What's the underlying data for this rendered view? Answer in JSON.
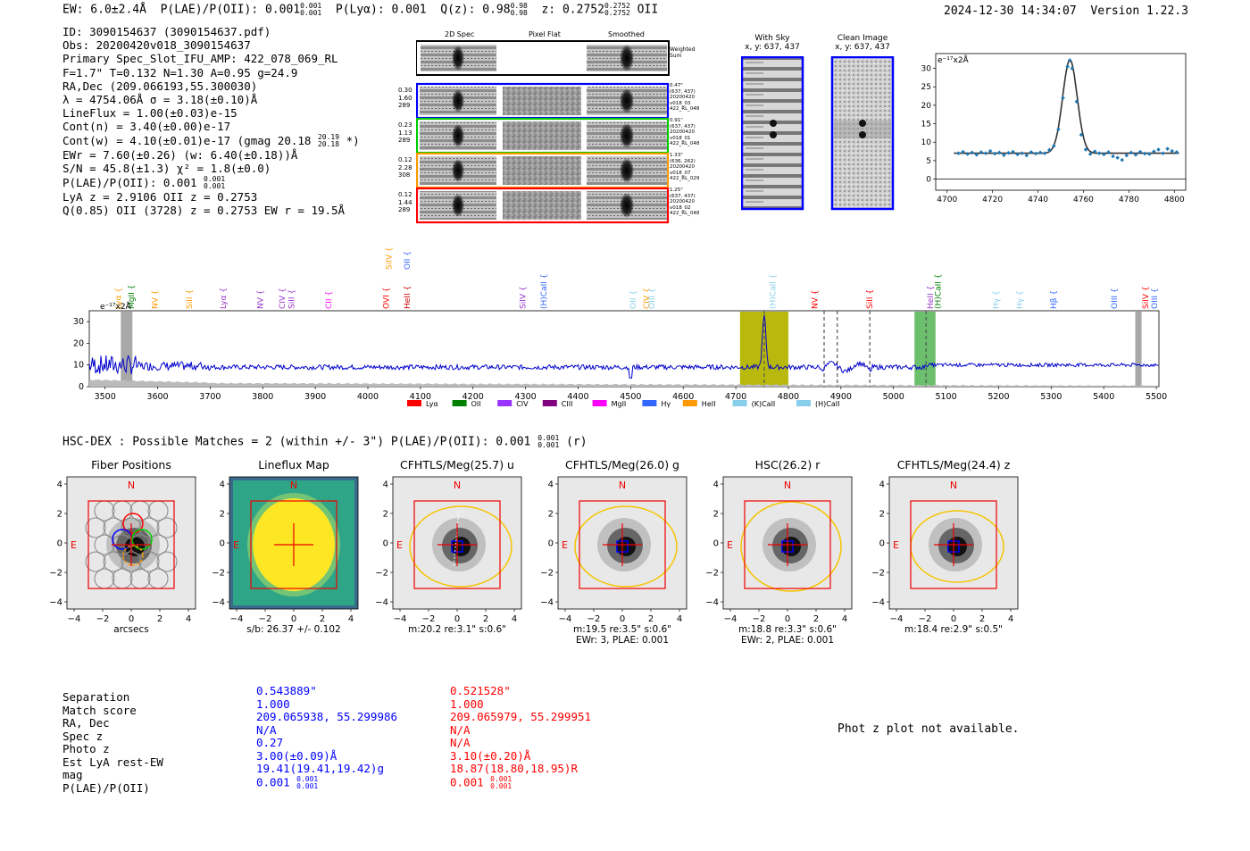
{
  "header": {
    "ew": "EW: 6.0±2.4Å",
    "plae": "P(LAE)/P(OII): 0.001",
    "plae_hi": "0.001",
    "plae_lo": "0.001",
    "plya": "P(Lyα): 0.001",
    "qz": "Q(z): 0.98",
    "qz_hi": "0.98",
    "qz_lo": "0.98",
    "z": "z: 0.2752",
    "z_hi": "0.2752",
    "z_lo": "0.2752",
    "z_line": "OII",
    "timestamp": "2024-12-30 14:34:07",
    "version": "Version 1.22.3"
  },
  "info": {
    "id": "ID: 3090154637 (3090154637.pdf)",
    "obs": "Obs: 20200420v018_3090154637",
    "primary": "Primary Spec_Slot_IFU_AMP: 422_078_069_RL",
    "fparams": "F=1.7\"  T=0.132  N=1.30  A=0.95  g=24.9",
    "radec": "RA,Dec (209.066193,55.300030)",
    "lambda": "λ = 4754.06Å  σ = 3.18(±0.10)Å",
    "lineflux": "LineFlux = 1.00(±0.03)e-15",
    "contn": "Cont(n) = 3.40(±0.00)e-17",
    "contw": "Cont(w) = 4.10(±0.01)e-17 (gmag 20.18",
    "contw_hi": "20.19",
    "contw_lo": "20.18",
    "contw_end": "*)",
    "ewr": "EWr = 7.60(±0.26) (w: 6.40(±0.18))Å",
    "sn": "S/N = 45.8(±1.3)  χ² = 1.8(±0.0)",
    "plae": "P(LAE)/P(OII): 0.001",
    "plae_hi": "0.001",
    "plae_lo": "0.001",
    "lya": "LyA z = 2.9106  OII z = 0.2753",
    "q": "Q(0.85) OII (3728) z = 0.2753  EW r = 19.5Å"
  },
  "stamps": {
    "col_headers": [
      "2D Spec",
      "Pixel Flat",
      "Smoothed"
    ],
    "weighted_label": "Weighted Sum",
    "rows": [
      {
        "left": [
          "0.30",
          "1.60",
          "289"
        ],
        "right": [
          "0.47\"",
          "(637, 437)",
          "20200420",
          "v018_03",
          "422_RL_048"
        ],
        "color": "#0000ff"
      },
      {
        "left": [
          "0.23",
          "1.13",
          "289"
        ],
        "right": [
          "0.91\"",
          "(637, 437)",
          "20200420",
          "v018_01",
          "422_RL_048"
        ],
        "color": "#00cc00"
      },
      {
        "left": [
          "0.12",
          "2.28",
          "308"
        ],
        "right": [
          "1.33\"",
          "(636, 262)",
          "20200420",
          "v018_07",
          "422_RL_029"
        ],
        "color": "#ff9900"
      },
      {
        "left": [
          "0.12",
          "1.44",
          "289"
        ],
        "right": [
          "1.25\"",
          "(637, 437)",
          "20200420",
          "v018_02",
          "422_RL_048"
        ],
        "color": "#ff0000"
      }
    ]
  },
  "sky": {
    "with_sky": "With Sky",
    "with_sky_xy": "x, y: 637, 437",
    "clean": "Clean Image",
    "clean_xy": "x, y: 637, 437"
  },
  "zoom_chart": {
    "unit_label": "e⁻¹⁷x2Å",
    "x_ticks": [
      "4700",
      "4720",
      "4740",
      "4760",
      "4780",
      "4800"
    ],
    "y_ticks": [
      "0",
      "5",
      "10",
      "15",
      "20",
      "25",
      "30"
    ]
  },
  "spectrum": {
    "unit_label": "e⁻¹⁷x2Å",
    "x_ticks": [
      "3500",
      "3600",
      "3700",
      "3800",
      "3900",
      "4000",
      "4100",
      "4200",
      "4300",
      "4400",
      "4500",
      "4600",
      "4700",
      "4800",
      "4900",
      "5000",
      "5100",
      "5200",
      "5300",
      "5400",
      "5500"
    ],
    "y_ticks": [
      "0",
      "10",
      "20",
      "30"
    ],
    "line_labels": [
      {
        "text": "Lyα",
        "color": "#ff9900"
      },
      {
        "text": "MgII",
        "color": "#008000"
      },
      {
        "text": "NV",
        "color": "#ff9900"
      },
      {
        "text": "SiII",
        "color": "#ff9900"
      },
      {
        "text": "Lyα",
        "color": "#9933cc"
      },
      {
        "text": "NV",
        "color": "#9933cc"
      },
      {
        "text": "CIV",
        "color": "#9933cc"
      },
      {
        "text": "SiII",
        "color": "#9933cc"
      },
      {
        "text": "CII",
        "color": "#ff00ff"
      },
      {
        "text": "OVI",
        "color": "#ff0000"
      },
      {
        "text": "HeII",
        "color": "#cc0000"
      },
      {
        "text": "SiIV",
        "color": "#ff9900"
      },
      {
        "text": "OII",
        "color": "#3366ff"
      },
      {
        "text": "SiIV",
        "color": "#9933cc"
      },
      {
        "text": "(H)CaII",
        "color": "#3366ff"
      },
      {
        "text": "OII",
        "color": "#87ceeb"
      },
      {
        "text": "CIV",
        "color": "#ff9900"
      },
      {
        "text": "OIII",
        "color": "#87ceeb"
      },
      {
        "text": "(H)CaII",
        "color": "#87ceeb"
      },
      {
        "text": "NV",
        "color": "#ff0000"
      },
      {
        "text": "SiII",
        "color": "#ff0000"
      },
      {
        "text": "HeII",
        "color": "#9933cc"
      },
      {
        "text": "(H)CaII",
        "color": "#008000"
      },
      {
        "text": "Hγ",
        "color": "#87ceeb"
      },
      {
        "text": "Hγ",
        "color": "#87ceeb"
      },
      {
        "text": "Hβ",
        "color": "#3366ff"
      },
      {
        "text": "OIII",
        "color": "#3366ff"
      },
      {
        "text": "SiIV",
        "color": "#ff0000"
      },
      {
        "text": "OIII",
        "color": "#3366ff"
      }
    ],
    "legend": [
      {
        "label": "Lyα",
        "color": "#ff0000"
      },
      {
        "label": "OII",
        "color": "#008000"
      },
      {
        "label": "CIV",
        "color": "#9933ff"
      },
      {
        "label": "CIII",
        "color": "#800080"
      },
      {
        "label": "MgII",
        "color": "#ff00ff"
      },
      {
        "label": "Hγ",
        "color": "#3366ff"
      },
      {
        "label": "HeII",
        "color": "#ff9900"
      },
      {
        "label": "(K)CaII",
        "color": "#87ceeb"
      },
      {
        "label": "(H)CaII",
        "color": "#87ceeb"
      }
    ]
  },
  "matches": {
    "title": "HSC-DEX : Possible Matches = 2 (within +/- 3\")  P(LAE)/P(OII): 0.001",
    "title_hi": "0.001",
    "title_lo": "0.001",
    "title_end": "(r)"
  },
  "cutouts": [
    {
      "title": "Fiber Positions",
      "xlabel": "arcsecs",
      "note1": "",
      "note2": ""
    },
    {
      "title": "Lineflux Map",
      "xlabel": "s/b: 26.37 +/- 0.102",
      "note1": "",
      "note2": ""
    },
    {
      "title": "CFHTLS/Meg(25.7) u",
      "xlabel": "m:20.2  re:3.1\"  s:0.6\"",
      "note1": "",
      "note2": ""
    },
    {
      "title": "CFHTLS/Meg(26.0) g",
      "xlabel": "m:19.5  re:3.5\"  s:0.6\"",
      "note1": "EWr: 3, PLAE: 0.001",
      "note2": ""
    },
    {
      "title": "HSC(26.2) r",
      "xlabel": "m:18.8  re:3.3\"  s:0.6\"",
      "note1": "EWr: 2, PLAE: 0.001",
      "note2": ""
    },
    {
      "title": "CFHTLS/Meg(24.4) z",
      "xlabel": "m:18.4  re:2.9\"  s:0.5\"",
      "note1": "",
      "note2": ""
    }
  ],
  "cutout_axis": {
    "ticks": [
      "−4",
      "−2",
      "0",
      "2",
      "4"
    ],
    "n_label": "N",
    "e_label": "E"
  },
  "table": {
    "labels": [
      "Separation",
      "Match score",
      "RA, Dec",
      "Spec z",
      "Photo z",
      "Est LyA rest-EW",
      "mag",
      "P(LAE)/P(OII)"
    ],
    "col1": [
      "0.543889\"",
      "1.000",
      "209.065938, 55.299986",
      "N/A",
      "0.27",
      "3.00(±0.09)Å",
      "19.41(19.41,19.42)g",
      "0.001"
    ],
    "col1_hi": "0.001",
    "col1_lo": "0.001",
    "col2": [
      "0.521528\"",
      "1.000",
      "209.065979, 55.299951",
      "N/A",
      "N/A",
      "3.10(±0.20)Å",
      "18.87(18.80,18.95)R",
      "0.001"
    ],
    "col2_hi": "0.001",
    "col2_lo": "0.001",
    "col1_color": "#0000ff",
    "col2_color": "#ff0000"
  },
  "photz": "Phot z plot not available.",
  "zoom_points": [
    [
      4705,
      7.0
    ],
    [
      4707,
      7.4
    ],
    [
      4709,
      6.8
    ],
    [
      4711,
      7.2
    ],
    [
      4713,
      6.6
    ],
    [
      4715,
      7.3
    ],
    [
      4717,
      7.0
    ],
    [
      4719,
      7.6
    ],
    [
      4721,
      6.9
    ],
    [
      4723,
      7.2
    ],
    [
      4725,
      6.5
    ],
    [
      4727,
      7.1
    ],
    [
      4729,
      7.4
    ],
    [
      4731,
      6.7
    ],
    [
      4733,
      7.0
    ],
    [
      4735,
      6.4
    ],
    [
      4737,
      7.3
    ],
    [
      4739,
      6.9
    ],
    [
      4741,
      7.2
    ],
    [
      4743,
      7.0
    ],
    [
      4745,
      7.9
    ],
    [
      4747,
      9.0
    ],
    [
      4749,
      13.5
    ],
    [
      4751,
      22.0
    ],
    [
      4753,
      30.5
    ],
    [
      4754,
      32.2
    ],
    [
      4755,
      30.0
    ],
    [
      4757,
      21.0
    ],
    [
      4759,
      12.0
    ],
    [
      4761,
      8.0
    ],
    [
      4763,
      6.8
    ],
    [
      4765,
      7.5
    ],
    [
      4767,
      7.0
    ],
    [
      4769,
      6.7
    ],
    [
      4771,
      7.3
    ],
    [
      4773,
      6.2
    ],
    [
      4775,
      5.8
    ],
    [
      4777,
      5.2
    ],
    [
      4779,
      6.4
    ],
    [
      4781,
      7.2
    ],
    [
      4783,
      6.6
    ],
    [
      4785,
      7.4
    ],
    [
      4787,
      6.9
    ],
    [
      4789,
      6.8
    ],
    [
      4791,
      7.5
    ],
    [
      4793,
      8.0
    ],
    [
      4795,
      7.0
    ],
    [
      4797,
      8.2
    ],
    [
      4799,
      7.6
    ],
    [
      4801,
      7.3
    ]
  ]
}
